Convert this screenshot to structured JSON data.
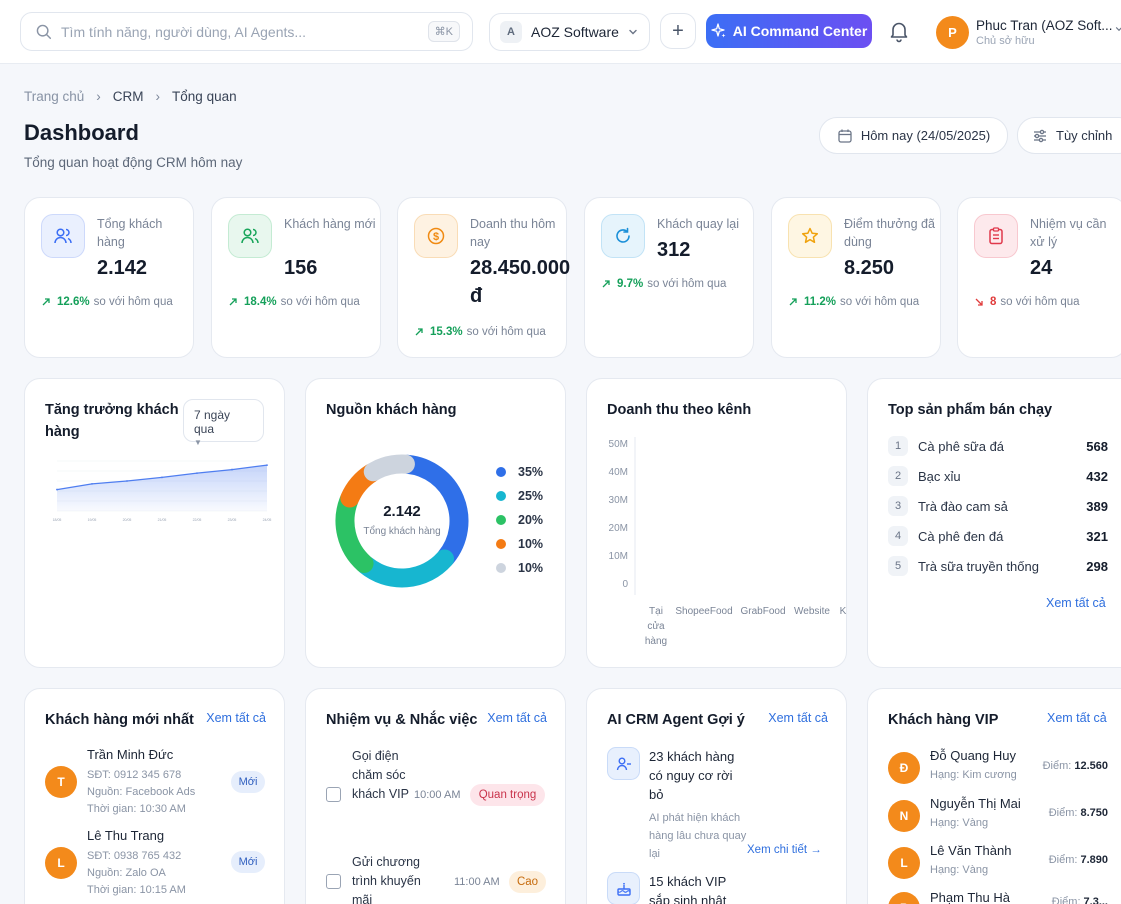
{
  "header": {
    "search_placeholder": "Tìm tính năng, người dùng, AI Agents...",
    "search_shortcut": "⌘K",
    "org_initial": "A",
    "org_name": "AOZ Software",
    "plus_label": "+",
    "ai_button": "AI Command Center",
    "user_initial": "P",
    "user_name": "Phuc Tran (AOZ Soft...",
    "user_role": "Chủ sở hữu"
  },
  "breadcrumb": [
    "Trang chủ",
    "CRM",
    "Tổng quan"
  ],
  "page": {
    "title": "Dashboard",
    "subtitle": "Tổng quan hoạt động CRM hôm nay",
    "date_button": "Hôm nay (24/05/2025)",
    "customize_button": "Tùy chỉnh"
  },
  "kpis": [
    {
      "label": "Tổng khách hàng",
      "value": "2.142",
      "change": "12.6%",
      "trend": "up",
      "compare": "so với hôm qua",
      "color": "#3b6ef5",
      "icon": "users-icon"
    },
    {
      "label": "Khách hàng mới",
      "value": "156",
      "change": "18.4%",
      "trend": "up",
      "compare": "so với hôm qua",
      "color": "#18a55a",
      "icon": "user-plus-icon"
    },
    {
      "label": "Doanh thu hôm nay",
      "value": "28.450.000 đ",
      "change": "15.3%",
      "trend": "up",
      "compare": "so với hôm qua",
      "color": "#f08a12",
      "icon": "dollar-icon"
    },
    {
      "label": "Khách quay lại",
      "value": "312",
      "change": "9.7%",
      "trend": "up",
      "compare": "so với hôm qua",
      "color": "#1a8fd8",
      "icon": "refresh-icon"
    },
    {
      "label": "Điểm thưởng đã dùng",
      "value": "8.250",
      "change": "11.2%",
      "trend": "up",
      "compare": "so với hôm qua",
      "color": "#f0a20c",
      "icon": "star-icon"
    },
    {
      "label": "Nhiệm vụ cần xử lý",
      "value": "24",
      "change": "8",
      "trend": "down",
      "compare": "so với hôm qua",
      "color": "#e0384b",
      "icon": "clipboard-icon"
    }
  ],
  "growth": {
    "title": "Tăng trưởng khách hàng",
    "period": "7 ngày qua",
    "chart_data": {
      "type": "area",
      "x": [
        "18/05",
        "19/05",
        "20/05",
        "21/05",
        "22/05",
        "23/05",
        "24/05"
      ],
      "values": [
        1800,
        1880,
        1920,
        1970,
        2030,
        2080,
        2142
      ],
      "ylim": [
        1500,
        2200
      ]
    }
  },
  "sources": {
    "title": "Nguồn khách hàng",
    "center_value": "2.142",
    "center_label": "Tổng khách hàng",
    "chart_data": {
      "type": "pie",
      "values": [
        35,
        25,
        20,
        10,
        10
      ],
      "labels": [
        "35%",
        "25%",
        "20%",
        "10%",
        "10%"
      ],
      "colors": [
        "#2f6fe8",
        "#17b6d0",
        "#2cc265",
        "#f47b14",
        "#cdd4de"
      ]
    }
  },
  "revenue": {
    "title": "Doanh thu theo kênh",
    "chart_data": {
      "type": "bar",
      "categories": [
        "Tại cửa hàng",
        "ShopeeFood",
        "GrabFood",
        "Website",
        "Khác"
      ],
      "yticks": [
        "50M",
        "40M",
        "30M",
        "20M",
        "10M",
        "0"
      ],
      "ylim": [
        0,
        50
      ]
    }
  },
  "products": {
    "title": "Top sản phẩm bán chạy",
    "items": [
      {
        "rank": "1",
        "name": "Cà phê sữa đá",
        "qty": "568"
      },
      {
        "rank": "2",
        "name": "Bạc xỉu",
        "qty": "432"
      },
      {
        "rank": "3",
        "name": "Trà đào cam sả",
        "qty": "389"
      },
      {
        "rank": "4",
        "name": "Cà phê đen đá",
        "qty": "321"
      },
      {
        "rank": "5",
        "name": "Trà sữa truyền thống",
        "qty": "298"
      }
    ],
    "see_all": "Xem tất cả"
  },
  "new_customers": {
    "title": "Khách hàng mới nhất",
    "see_all": "Xem tất cả",
    "items": [
      {
        "initial": "T",
        "name": "Trần Minh Đức",
        "phone": "SĐT: 0912 345 678",
        "source": "Nguồn: Facebook Ads",
        "time": "Thời gian: 10:30 AM",
        "tag": "Mới"
      },
      {
        "initial": "L",
        "name": "Lê Thu Trang",
        "phone": "SĐT: 0938 765 432",
        "source": "Nguồn: Zalo OA",
        "time": "Thời gian: 10:15 AM",
        "tag": "Mới"
      }
    ]
  },
  "tasks": {
    "title": "Nhiệm vụ & Nhắc việc",
    "see_all": "Xem tất cả",
    "items": [
      {
        "text": "Gọi điện chăm sóc khách VIP",
        "time": "10:00 AM",
        "priority": "Quan trọng"
      },
      {
        "text": "Gửi chương trình khuyến mãi",
        "time": "11:00 AM",
        "priority": "Cao"
      }
    ]
  },
  "ai_agent": {
    "title": "AI CRM Agent Gợi ý",
    "see_all": "Xem tất cả",
    "items": [
      {
        "title": "23 khách hàng có nguy cơ rời bỏ",
        "desc": "AI phát hiện khách hàng lâu chưa quay lại",
        "link": "Xem chi tiết →"
      },
      {
        "title": "15 khách VIP sắp sinh nhật",
        "desc": "",
        "link": ""
      }
    ]
  },
  "vip": {
    "title": "Khách hàng VIP",
    "see_all": "Xem tất cả",
    "points_label": "Điểm:",
    "items": [
      {
        "initial": "Đ",
        "name": "Đỗ Quang Huy",
        "rank": "Hạng: Kim cương",
        "points": "12.560"
      },
      {
        "initial": "N",
        "name": "Nguyễn Thị Mai",
        "rank": "Hạng: Vàng",
        "points": "8.750"
      },
      {
        "initial": "L",
        "name": "Lê Văn Thành",
        "rank": "Hạng: Vàng",
        "points": "7.890"
      },
      {
        "initial": "P",
        "name": "Phạm Thu Hà",
        "rank": "",
        "points": "7.3..."
      }
    ]
  }
}
